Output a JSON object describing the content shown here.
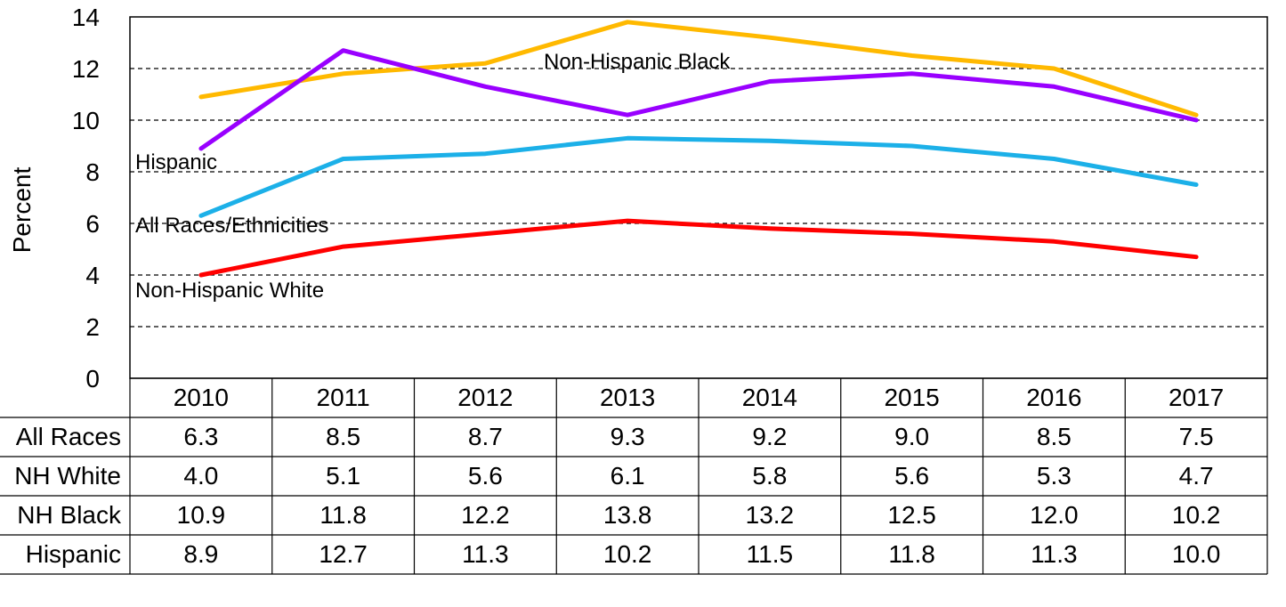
{
  "chart_data": {
    "type": "line",
    "title": "",
    "xlabel": "",
    "ylabel": "Percent",
    "ylim": [
      0,
      14
    ],
    "yticks": [
      "0",
      "2",
      "4",
      "6",
      "8",
      "10",
      "12",
      "14"
    ],
    "grid": "horizontal dashed",
    "categories": [
      "2010",
      "2011",
      "2012",
      "2013",
      "2014",
      "2015",
      "2016",
      "2017"
    ],
    "series": [
      {
        "name": "All Races/Ethnicities",
        "table_label": "All Races",
        "color": "#1CB0E8",
        "values": [
          6.3,
          8.5,
          8.7,
          9.3,
          9.2,
          9.0,
          8.5,
          7.5
        ],
        "display": [
          "6.3",
          "8.5",
          "8.7",
          "9.3",
          "9.2",
          "9.0",
          "8.5",
          "7.5"
        ]
      },
      {
        "name": "Non-Hispanic White",
        "table_label": "NH White",
        "color": "#FF0000",
        "values": [
          4.0,
          5.1,
          5.6,
          6.1,
          5.8,
          5.6,
          5.3,
          4.7
        ],
        "display": [
          "4.0",
          "5.1",
          "5.6",
          "6.1",
          "5.8",
          "5.6",
          "5.3",
          "4.7"
        ]
      },
      {
        "name": "Non-Hispanic Black",
        "table_label": "NH Black",
        "color": "#FFB900",
        "values": [
          10.9,
          11.8,
          12.2,
          13.8,
          13.2,
          12.5,
          12.0,
          10.2
        ],
        "display": [
          "10.9",
          "11.8",
          "12.2",
          "13.8",
          "13.2",
          "12.5",
          "12.0",
          "10.2"
        ]
      },
      {
        "name": "Hispanic",
        "table_label": "Hispanic",
        "color": "#9900FF",
        "values": [
          8.9,
          12.7,
          11.3,
          10.2,
          11.5,
          11.8,
          11.3,
          10.0
        ],
        "display": [
          "8.9",
          "12.7",
          "11.3",
          "10.2",
          "11.5",
          "11.8",
          "11.3",
          "10.0"
        ]
      }
    ]
  }
}
